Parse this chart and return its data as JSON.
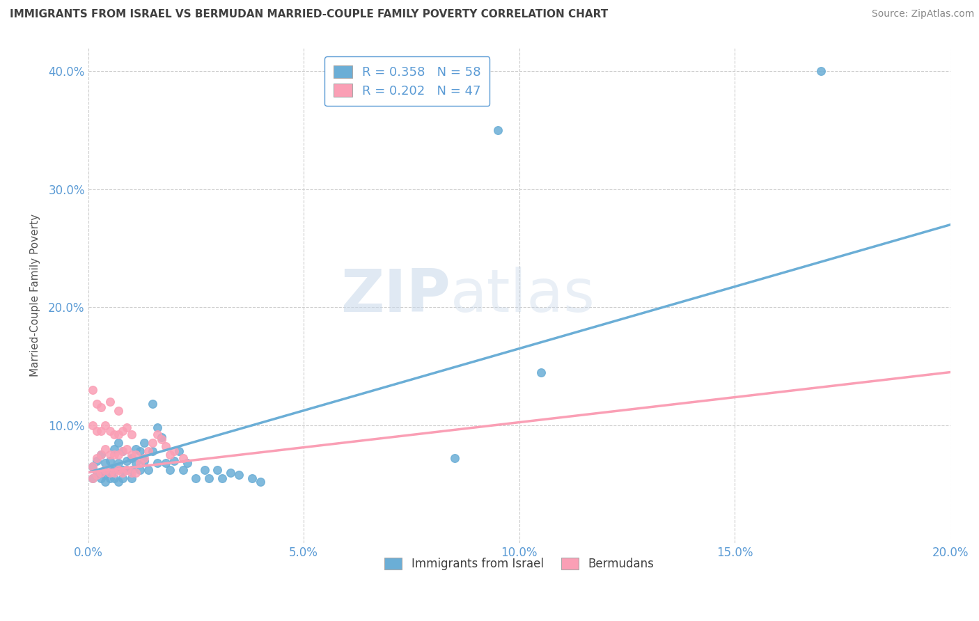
{
  "title": "IMMIGRANTS FROM ISRAEL VS BERMUDAN MARRIED-COUPLE FAMILY POVERTY CORRELATION CHART",
  "source": "Source: ZipAtlas.com",
  "ylabel": "Married-Couple Family Poverty",
  "xlim": [
    0.0,
    0.2
  ],
  "ylim": [
    0.0,
    0.42
  ],
  "xtick_labels": [
    "0.0%",
    "5.0%",
    "10.0%",
    "15.0%",
    "20.0%"
  ],
  "xtick_vals": [
    0.0,
    0.05,
    0.1,
    0.15,
    0.2
  ],
  "ytick_labels": [
    "10.0%",
    "20.0%",
    "30.0%",
    "40.0%"
  ],
  "ytick_vals": [
    0.1,
    0.2,
    0.3,
    0.4
  ],
  "israel_color": "#6baed6",
  "bermuda_color": "#fa9fb5",
  "israel_R": 0.358,
  "israel_N": 58,
  "bermuda_R": 0.202,
  "bermuda_N": 47,
  "israel_scatter_x": [
    0.001,
    0.001,
    0.002,
    0.002,
    0.003,
    0.003,
    0.003,
    0.004,
    0.004,
    0.004,
    0.005,
    0.005,
    0.005,
    0.006,
    0.006,
    0.006,
    0.007,
    0.007,
    0.007,
    0.008,
    0.008,
    0.008,
    0.009,
    0.009,
    0.01,
    0.01,
    0.01,
    0.011,
    0.011,
    0.012,
    0.012,
    0.013,
    0.013,
    0.014,
    0.015,
    0.015,
    0.016,
    0.016,
    0.017,
    0.018,
    0.019,
    0.02,
    0.021,
    0.022,
    0.023,
    0.025,
    0.027,
    0.028,
    0.03,
    0.031,
    0.033,
    0.035,
    0.038,
    0.04,
    0.085,
    0.095,
    0.17,
    0.105
  ],
  "israel_scatter_y": [
    0.065,
    0.055,
    0.07,
    0.06,
    0.075,
    0.06,
    0.055,
    0.068,
    0.058,
    0.052,
    0.062,
    0.055,
    0.07,
    0.08,
    0.062,
    0.055,
    0.085,
    0.068,
    0.052,
    0.078,
    0.062,
    0.055,
    0.07,
    0.062,
    0.072,
    0.062,
    0.055,
    0.08,
    0.068,
    0.062,
    0.078,
    0.07,
    0.085,
    0.062,
    0.078,
    0.118,
    0.098,
    0.068,
    0.09,
    0.068,
    0.062,
    0.07,
    0.078,
    0.062,
    0.068,
    0.055,
    0.062,
    0.055,
    0.062,
    0.055,
    0.06,
    0.058,
    0.055,
    0.052,
    0.072,
    0.35,
    0.4,
    0.145
  ],
  "bermuda_scatter_x": [
    0.001,
    0.001,
    0.001,
    0.001,
    0.002,
    0.002,
    0.002,
    0.002,
    0.003,
    0.003,
    0.003,
    0.003,
    0.004,
    0.004,
    0.004,
    0.005,
    0.005,
    0.005,
    0.005,
    0.006,
    0.006,
    0.006,
    0.007,
    0.007,
    0.007,
    0.007,
    0.008,
    0.008,
    0.008,
    0.009,
    0.009,
    0.009,
    0.01,
    0.01,
    0.01,
    0.011,
    0.011,
    0.012,
    0.013,
    0.014,
    0.015,
    0.016,
    0.017,
    0.018,
    0.019,
    0.02,
    0.022
  ],
  "bermuda_scatter_y": [
    0.055,
    0.065,
    0.1,
    0.13,
    0.058,
    0.072,
    0.095,
    0.118,
    0.06,
    0.075,
    0.095,
    0.115,
    0.062,
    0.08,
    0.1,
    0.06,
    0.075,
    0.095,
    0.12,
    0.06,
    0.075,
    0.092,
    0.062,
    0.075,
    0.092,
    0.112,
    0.06,
    0.078,
    0.095,
    0.062,
    0.08,
    0.098,
    0.06,
    0.075,
    0.092,
    0.06,
    0.075,
    0.068,
    0.072,
    0.078,
    0.085,
    0.092,
    0.088,
    0.082,
    0.075,
    0.078,
    0.072
  ],
  "israel_line_x": [
    0.0,
    0.2
  ],
  "israel_line_y": [
    0.06,
    0.27
  ],
  "bermuda_line_x": [
    0.0,
    0.2
  ],
  "bermuda_line_y": [
    0.06,
    0.145
  ],
  "watermark_zip": "ZIP",
  "watermark_atlas": "atlas",
  "background_color": "#ffffff",
  "grid_color": "#cccccc",
  "title_color": "#404040",
  "axis_label_color": "#5b9bd5",
  "legend_box_color": "#5b9bd5"
}
